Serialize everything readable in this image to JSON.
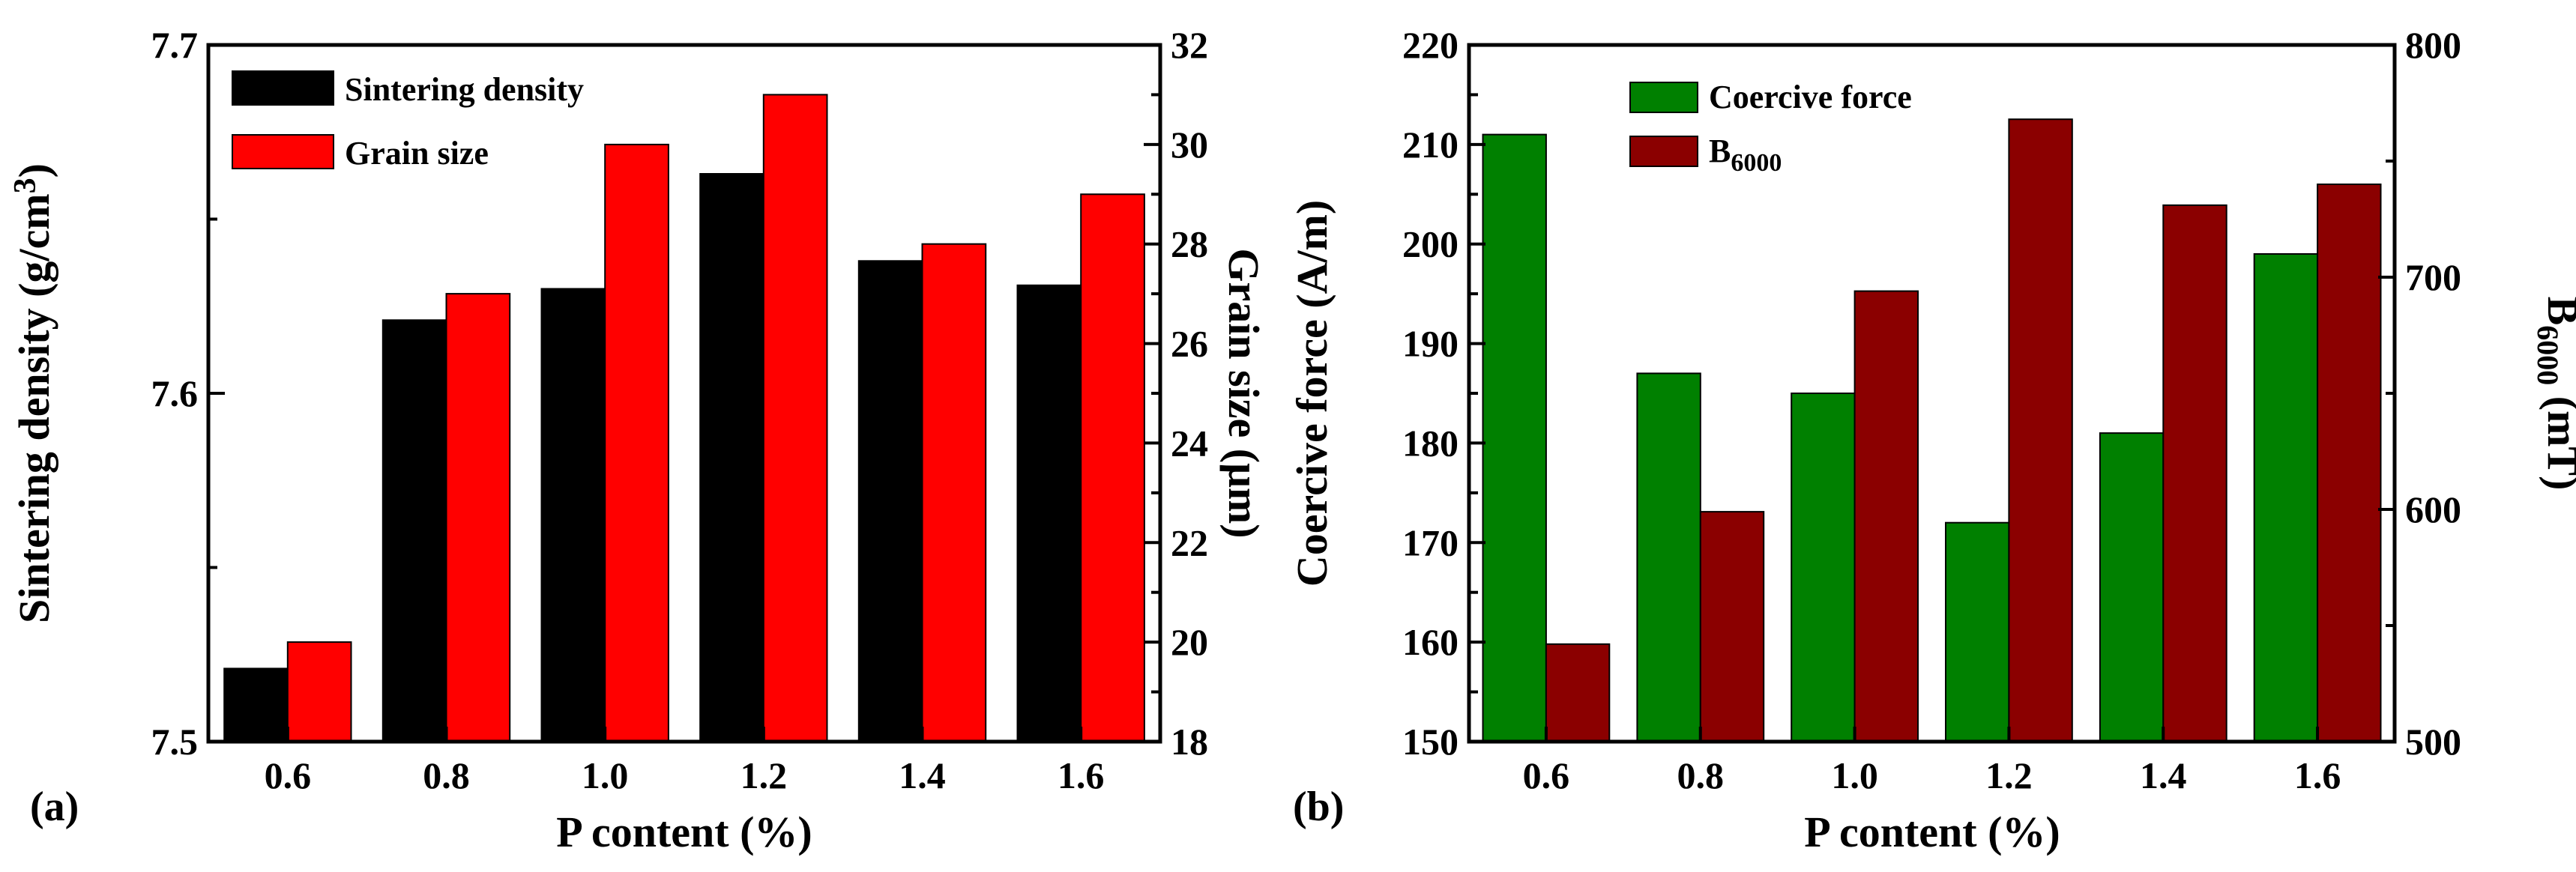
{
  "chart_data": [
    {
      "panel_label": "(a)",
      "type": "bar",
      "categories": [
        "0.6",
        "0.8",
        "1.0",
        "1.2",
        "1.4",
        "1.6"
      ],
      "xlabel": "P content (%)",
      "ylabel": "Sintering density (g/cm",
      "ylabel_sup": "3",
      "ylabel_close": ")",
      "ylim": [
        7.5,
        7.7
      ],
      "yticks": [
        "7.5",
        "7.6",
        "7.7"
      ],
      "y2label": "Grain size (μm)",
      "y2lim": [
        18,
        32
      ],
      "y2ticks": [
        "18",
        "20",
        "22",
        "24",
        "26",
        "28",
        "30",
        "32"
      ],
      "legend": [
        "Sintering density",
        "Grain size"
      ],
      "legend_position": "top-left",
      "series": [
        {
          "name": "Sintering density",
          "axis": "left",
          "color": "#000000",
          "values": [
            7.521,
            7.621,
            7.63,
            7.663,
            7.638,
            7.631
          ]
        },
        {
          "name": "Grain size",
          "axis": "right",
          "color": "#ff0000",
          "values": [
            20.0,
            27.0,
            30.0,
            31.0,
            28.0,
            29.0
          ]
        }
      ]
    },
    {
      "panel_label": "(b)",
      "type": "bar",
      "categories": [
        "0.6",
        "0.8",
        "1.0",
        "1.2",
        "1.4",
        "1.6"
      ],
      "xlabel": "P content (%)",
      "ylabel": "Coercive force (A/m)",
      "ylim": [
        150,
        220
      ],
      "yticks": [
        "150",
        "160",
        "170",
        "180",
        "190",
        "200",
        "210",
        "220"
      ],
      "y2label": "B",
      "y2label_sub": "6000",
      "y2label_rest": " (mT)",
      "y2lim": [
        500,
        800
      ],
      "y2ticks": [
        "500",
        "600",
        "700",
        "800"
      ],
      "legend": [
        "Coercive force",
        "B",
        "6000"
      ],
      "legend_position": "top-left",
      "series": [
        {
          "name": "Coercive force",
          "axis": "left",
          "color": "#008000",
          "values": [
            211,
            187,
            185,
            172,
            181,
            199
          ]
        },
        {
          "name": "B6000",
          "axis": "right",
          "color": "#8b0000",
          "values": [
            542,
            599,
            694,
            768,
            731,
            740
          ]
        }
      ]
    }
  ]
}
